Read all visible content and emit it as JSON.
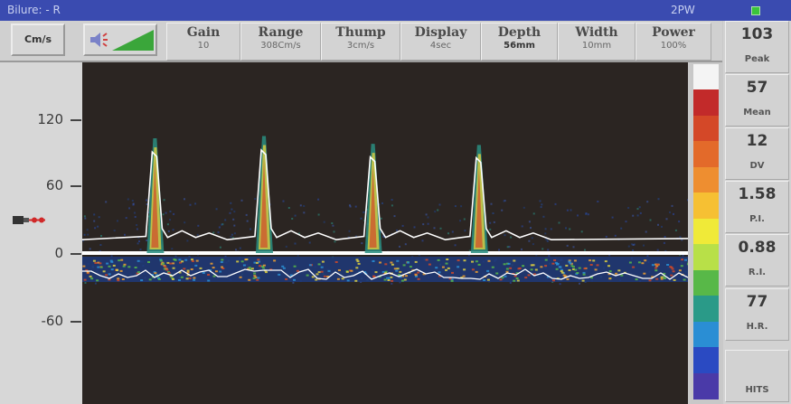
{
  "titlebar": {
    "left_text": "Bilure: - R",
    "mode_text": "2PW"
  },
  "toolbar": {
    "units_label": "Cm/s",
    "params": [
      {
        "label": "Gain",
        "value": "10"
      },
      {
        "label": "Range",
        "value": "308Cm/s"
      },
      {
        "label": "Thump",
        "value": "3cm/s"
      },
      {
        "label": "Display",
        "value": "4sec"
      },
      {
        "label": "Depth",
        "value": "56mm"
      },
      {
        "label": "Width",
        "value": "10mm"
      },
      {
        "label": "Power",
        "value": "100%"
      }
    ]
  },
  "axis": {
    "ticks": [
      "120",
      "60",
      "0",
      "-60"
    ],
    "tick_values": [
      120,
      60,
      0,
      -60
    ]
  },
  "colorbar": {
    "colors": [
      "#f4f4f4",
      "#c22a2a",
      "#d44828",
      "#e36a2a",
      "#ee8e30",
      "#f6c033",
      "#f0ea38",
      "#b8e048",
      "#58b848",
      "#2a9a88",
      "#2a8ed4",
      "#2a4ac2",
      "#4a3aa8"
    ]
  },
  "measurements": [
    {
      "value": "103",
      "label": "Peak"
    },
    {
      "value": "57",
      "label": "Mean"
    },
    {
      "value": "12",
      "label": "DV"
    },
    {
      "value": "1.58",
      "label": "P.I."
    },
    {
      "value": "0.88",
      "label": "R.I."
    },
    {
      "value": "77",
      "label": "H.R."
    }
  ],
  "hits_label": "HITS",
  "spectrum": {
    "peaks_s": [
      0.48,
      1.2,
      1.92,
      2.62
    ],
    "peak_values": [
      103,
      105,
      98,
      97
    ],
    "display_sec": 4
  }
}
